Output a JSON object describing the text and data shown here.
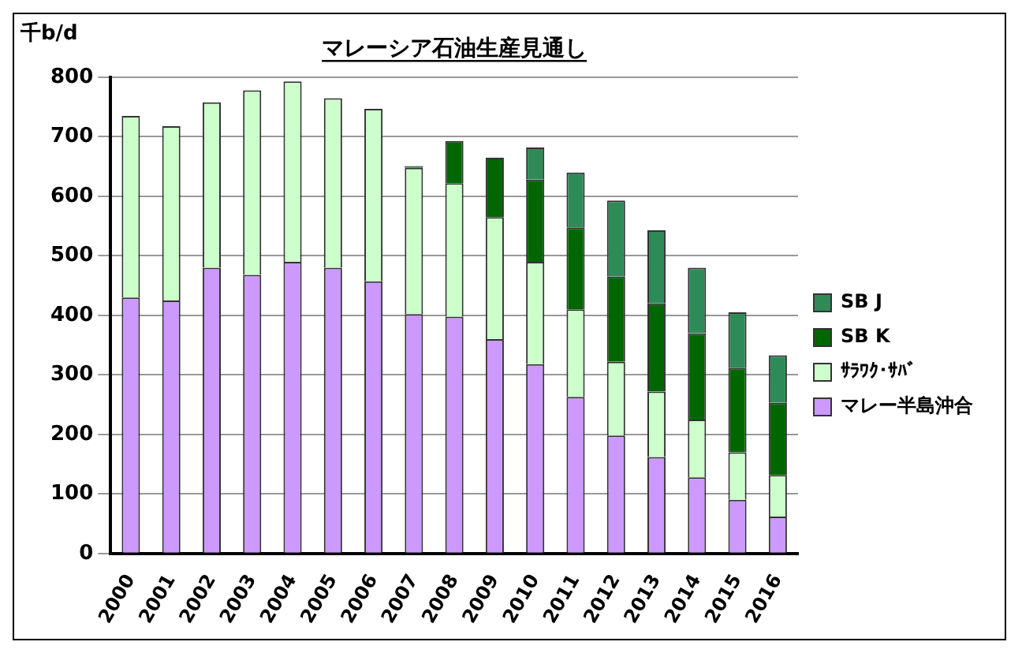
{
  "chart_data": {
    "type": "bar",
    "title": "マレーシア石油生産見通し",
    "ylabel": "千b/d",
    "stacked": true,
    "categories": [
      "2000",
      "2001",
      "2002",
      "2003",
      "2004",
      "2005",
      "2006",
      "2007",
      "2008",
      "2009",
      "2010",
      "2011",
      "2012",
      "2013",
      "2014",
      "2015",
      "2016"
    ],
    "series": [
      {
        "name": "マレー半島沖合",
        "color": "#cc99ff",
        "values": [
          430,
          425,
          480,
          468,
          490,
          480,
          457,
          402,
          398,
          360,
          318,
          263,
          198,
          162,
          128,
          90,
          62
        ]
      },
      {
        "name": "ｻﾗﾜｸ･ｻﾊﾞ",
        "color": "#ccffcc",
        "values": [
          305,
          293,
          278,
          310,
          303,
          285,
          290,
          246,
          224,
          205,
          172,
          147,
          124,
          110,
          97,
          80,
          70
        ]
      },
      {
        "name": "SB K",
        "color": "#006600",
        "values": [
          null,
          null,
          null,
          null,
          null,
          null,
          null,
          3,
          71,
          100,
          138,
          138,
          143,
          148,
          145,
          142,
          121
        ]
      },
      {
        "name": "SB J",
        "color": "#2e8b57",
        "values": [
          null,
          null,
          null,
          null,
          null,
          null,
          null,
          null,
          null,
          null,
          54,
          92,
          128,
          123,
          110,
          93,
          80
        ]
      }
    ],
    "ylim": [
      0,
      800
    ],
    "yticks": [
      0,
      100,
      200,
      300,
      400,
      500,
      600,
      700,
      800
    ],
    "grid": "y",
    "legend": "right"
  }
}
